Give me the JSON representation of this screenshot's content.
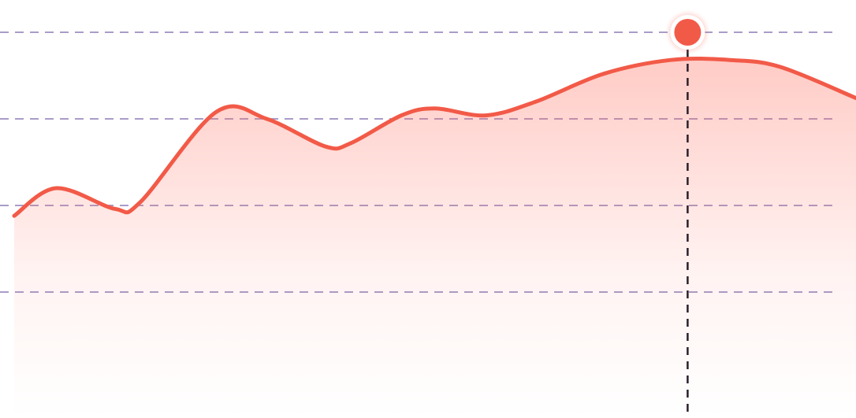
{
  "colors": {
    "line": "#F25A48",
    "fill_top": "#FF6B5B",
    "grid": "#A99CC8",
    "marker_line": "#2A1F2A",
    "marker_dot": "#F25A48",
    "marker_ring": "#FFFFFF",
    "background": "#FFFFFF"
  },
  "chart_data": {
    "type": "area",
    "curve": "smooth",
    "grid": "horizontal-dashed",
    "legend": "none",
    "axes_visible": false,
    "ylim": [
      0,
      100
    ],
    "xlim": [
      0,
      100
    ],
    "gridlines_y": [
      100,
      75,
      50,
      25
    ],
    "series": [
      {
        "points": [
          [
            0,
            47
          ],
          [
            5,
            55
          ],
          [
            12,
            49
          ],
          [
            15,
            51
          ],
          [
            24,
            77
          ],
          [
            30,
            75
          ],
          [
            37,
            67
          ],
          [
            40,
            68
          ],
          [
            46,
            76
          ],
          [
            50,
            78
          ],
          [
            56,
            76
          ],
          [
            62,
            80
          ],
          [
            70,
            88
          ],
          [
            78,
            92
          ],
          [
            85,
            92
          ],
          [
            91,
            90
          ],
          [
            100,
            81
          ]
        ]
      }
    ],
    "highlight": {
      "x": 80,
      "y": 100
    }
  }
}
